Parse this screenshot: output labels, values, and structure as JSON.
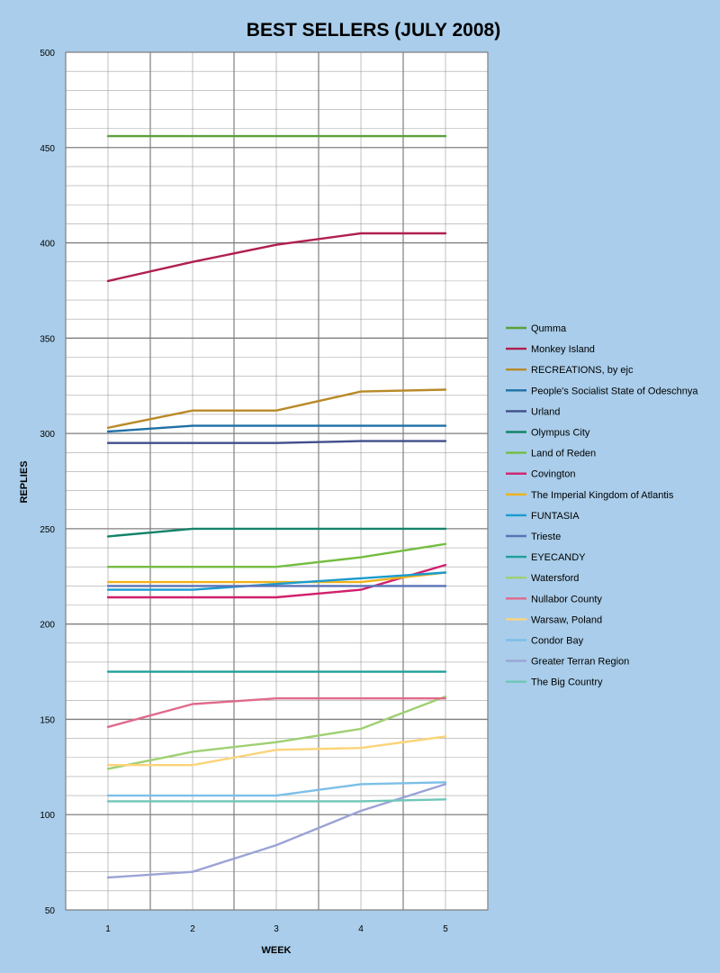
{
  "chart_data": {
    "type": "line",
    "title": "BEST SELLERS (JULY 2008)",
    "xlabel": "WEEK",
    "ylabel": "REPLIES",
    "categories": [
      "1",
      "2",
      "3",
      "4",
      "5"
    ],
    "ylim": [
      50,
      500
    ],
    "yticks": [
      50,
      100,
      150,
      200,
      250,
      300,
      350,
      400,
      450,
      500
    ],
    "grid": true,
    "legend_position": "right",
    "colors": {
      "background": "#a9cdea",
      "plot_background": "#ffffff",
      "grid": "#7f7f7f"
    },
    "series": [
      {
        "name": "Qumma",
        "color": "#5aa03c",
        "values": [
          456,
          456,
          456,
          456,
          456
        ]
      },
      {
        "name": "Monkey Island",
        "color": "#b01f4e",
        "values": [
          380,
          390,
          399,
          405,
          405
        ]
      },
      {
        "name": "RECREATIONS, by ejc",
        "color": "#b98a28",
        "values": [
          303,
          312,
          312,
          322,
          323
        ]
      },
      {
        "name": "People's Socialist State of Odeschnya",
        "color": "#1f6fa6",
        "values": [
          301,
          304,
          304,
          304,
          304
        ]
      },
      {
        "name": "Urland",
        "color": "#414e8c",
        "values": [
          295,
          295,
          295,
          296,
          296
        ]
      },
      {
        "name": "Olympus City",
        "color": "#15836a",
        "values": [
          246,
          250,
          250,
          250,
          250
        ]
      },
      {
        "name": "Land of Reden",
        "color": "#74bd41",
        "values": [
          230,
          230,
          230,
          235,
          242
        ]
      },
      {
        "name": "Covington",
        "color": "#d1206c",
        "values": [
          214,
          214,
          214,
          218,
          231
        ]
      },
      {
        "name": "The Imperial Kingdom of Atlantis",
        "color": "#f0b21a",
        "values": [
          222,
          222,
          222,
          222,
          227
        ]
      },
      {
        "name": "FUNTASIA",
        "color": "#1b9bcf",
        "values": [
          218,
          218,
          221,
          224,
          227
        ]
      },
      {
        "name": "Trieste",
        "color": "#5a73b8",
        "values": [
          220,
          220,
          220,
          220,
          220
        ]
      },
      {
        "name": "EYECANDY",
        "color": "#20a09a",
        "values": [
          175,
          175,
          175,
          175,
          175
        ]
      },
      {
        "name": "Watersford",
        "color": "#9fd073",
        "values": [
          124,
          133,
          138,
          145,
          162
        ]
      },
      {
        "name": "Nullabor County",
        "color": "#e06a8c",
        "values": [
          146,
          158,
          161,
          161,
          161
        ]
      },
      {
        "name": "Warsaw, Poland",
        "color": "#fbd47a",
        "values": [
          126,
          126,
          134,
          135,
          141
        ]
      },
      {
        "name": "Condor Bay",
        "color": "#7cbfe8",
        "values": [
          110,
          110,
          110,
          116,
          117
        ]
      },
      {
        "name": "Greater Terran Region",
        "color": "#9ba3d6",
        "values": [
          67,
          70,
          84,
          102,
          116
        ]
      },
      {
        "name": "The Big Country",
        "color": "#70c6b8",
        "values": [
          107,
          107,
          107,
          107,
          108
        ]
      }
    ]
  }
}
